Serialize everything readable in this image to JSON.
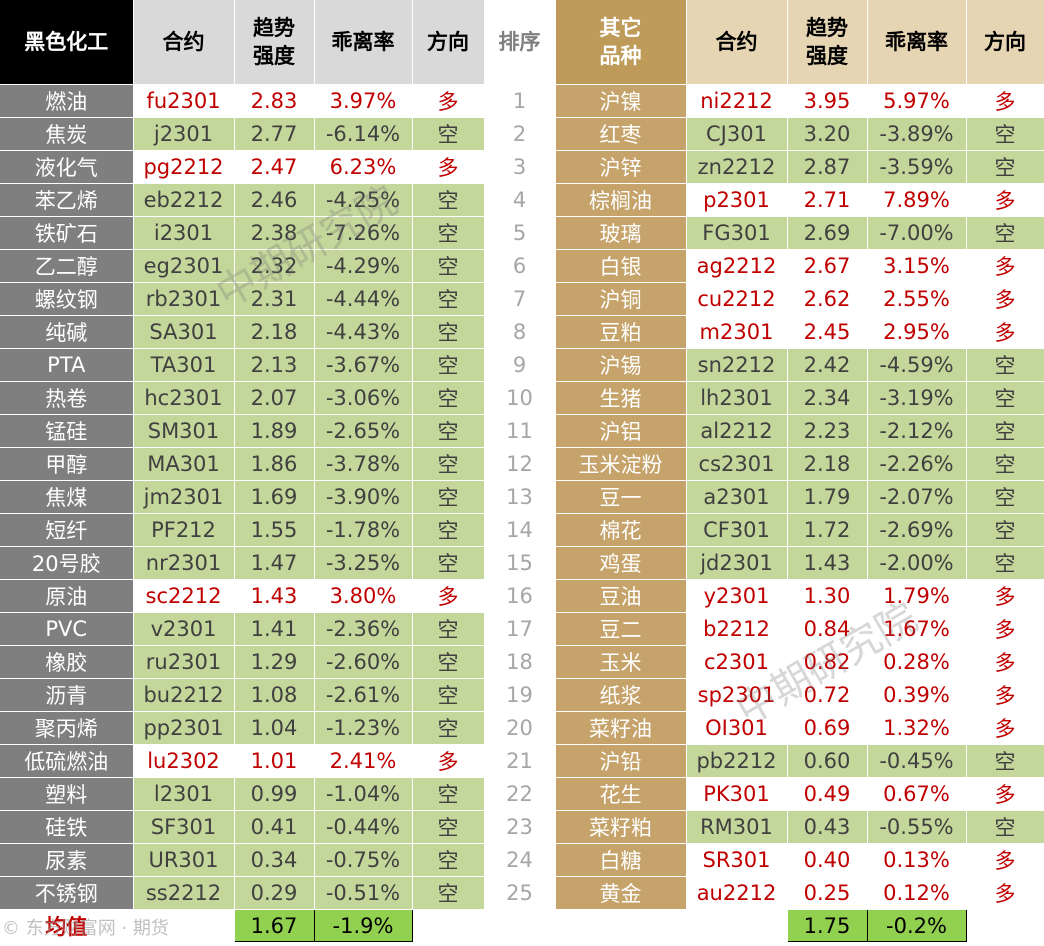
{
  "headers": {
    "left_category": "黑色化工",
    "contract": "合约",
    "trend_line1": "趋势",
    "trend_line2": "强度",
    "deviation": "乖离率",
    "direction": "方向",
    "rank": "排序",
    "right_category_line1": "其它",
    "right_category_line2": "品种"
  },
  "left_rows": [
    {
      "name": "燃油",
      "contract": "fu2301",
      "strength": "2.83",
      "deviation": "3.97%",
      "direction": "多"
    },
    {
      "name": "焦炭",
      "contract": "j2301",
      "strength": "2.77",
      "deviation": "-6.14%",
      "direction": "空"
    },
    {
      "name": "液化气",
      "contract": "pg2212",
      "strength": "2.47",
      "deviation": "6.23%",
      "direction": "多"
    },
    {
      "name": "苯乙烯",
      "contract": "eb2212",
      "strength": "2.46",
      "deviation": "-4.25%",
      "direction": "空"
    },
    {
      "name": "铁矿石",
      "contract": "i2301",
      "strength": "2.38",
      "deviation": "-7.26%",
      "direction": "空"
    },
    {
      "name": "乙二醇",
      "contract": "eg2301",
      "strength": "2.32",
      "deviation": "-4.29%",
      "direction": "空"
    },
    {
      "name": "螺纹钢",
      "contract": "rb2301",
      "strength": "2.31",
      "deviation": "-4.44%",
      "direction": "空"
    },
    {
      "name": "纯碱",
      "contract": "SA301",
      "strength": "2.18",
      "deviation": "-4.43%",
      "direction": "空"
    },
    {
      "name": "PTA",
      "contract": "TA301",
      "strength": "2.13",
      "deviation": "-3.67%",
      "direction": "空"
    },
    {
      "name": "热卷",
      "contract": "hc2301",
      "strength": "2.07",
      "deviation": "-3.06%",
      "direction": "空"
    },
    {
      "name": "锰硅",
      "contract": "SM301",
      "strength": "1.89",
      "deviation": "-2.65%",
      "direction": "空"
    },
    {
      "name": "甲醇",
      "contract": "MA301",
      "strength": "1.86",
      "deviation": "-3.78%",
      "direction": "空"
    },
    {
      "name": "焦煤",
      "contract": "jm2301",
      "strength": "1.69",
      "deviation": "-3.90%",
      "direction": "空"
    },
    {
      "name": "短纤",
      "contract": "PF212",
      "strength": "1.55",
      "deviation": "-1.78%",
      "direction": "空"
    },
    {
      "name": "20号胶",
      "contract": "nr2301",
      "strength": "1.47",
      "deviation": "-3.25%",
      "direction": "空"
    },
    {
      "name": "原油",
      "contract": "sc2212",
      "strength": "1.43",
      "deviation": "3.80%",
      "direction": "多"
    },
    {
      "name": "PVC",
      "contract": "v2301",
      "strength": "1.41",
      "deviation": "-2.36%",
      "direction": "空"
    },
    {
      "name": "橡胶",
      "contract": "ru2301",
      "strength": "1.29",
      "deviation": "-2.60%",
      "direction": "空"
    },
    {
      "name": "沥青",
      "contract": "bu2212",
      "strength": "1.08",
      "deviation": "-2.61%",
      "direction": "空"
    },
    {
      "name": "聚丙烯",
      "contract": "pp2301",
      "strength": "1.04",
      "deviation": "-1.23%",
      "direction": "空"
    },
    {
      "name": "低硫燃油",
      "contract": "lu2302",
      "strength": "1.01",
      "deviation": "2.41%",
      "direction": "多"
    },
    {
      "name": "塑料",
      "contract": "l2301",
      "strength": "0.99",
      "deviation": "-1.04%",
      "direction": "空"
    },
    {
      "name": "硅铁",
      "contract": "SF301",
      "strength": "0.41",
      "deviation": "-0.44%",
      "direction": "空"
    },
    {
      "name": "尿素",
      "contract": "UR301",
      "strength": "0.34",
      "deviation": "-0.75%",
      "direction": "空"
    },
    {
      "name": "不锈钢",
      "contract": "ss2212",
      "strength": "0.29",
      "deviation": "-0.51%",
      "direction": "空"
    }
  ],
  "right_rows": [
    {
      "name": "沪镍",
      "contract": "ni2212",
      "strength": "3.95",
      "deviation": "5.97%",
      "direction": "多"
    },
    {
      "name": "红枣",
      "contract": "CJ301",
      "strength": "3.20",
      "deviation": "-3.89%",
      "direction": "空"
    },
    {
      "name": "沪锌",
      "contract": "zn2212",
      "strength": "2.87",
      "deviation": "-3.59%",
      "direction": "空"
    },
    {
      "name": "棕榈油",
      "contract": "p2301",
      "strength": "2.71",
      "deviation": "7.89%",
      "direction": "多"
    },
    {
      "name": "玻璃",
      "contract": "FG301",
      "strength": "2.69",
      "deviation": "-7.00%",
      "direction": "空"
    },
    {
      "name": "白银",
      "contract": "ag2212",
      "strength": "2.67",
      "deviation": "3.15%",
      "direction": "多"
    },
    {
      "name": "沪铜",
      "contract": "cu2212",
      "strength": "2.62",
      "deviation": "2.55%",
      "direction": "多"
    },
    {
      "name": "豆粕",
      "contract": "m2301",
      "strength": "2.45",
      "deviation": "2.95%",
      "direction": "多"
    },
    {
      "name": "沪锡",
      "contract": "sn2212",
      "strength": "2.42",
      "deviation": "-4.59%",
      "direction": "空"
    },
    {
      "name": "生猪",
      "contract": "lh2301",
      "strength": "2.34",
      "deviation": "-3.19%",
      "direction": "空"
    },
    {
      "name": "沪铝",
      "contract": "al2212",
      "strength": "2.23",
      "deviation": "-2.12%",
      "direction": "空"
    },
    {
      "name": "玉米淀粉",
      "contract": "cs2301",
      "strength": "2.18",
      "deviation": "-2.26%",
      "direction": "空"
    },
    {
      "name": "豆一",
      "contract": "a2301",
      "strength": "1.79",
      "deviation": "-2.07%",
      "direction": "空"
    },
    {
      "name": "棉花",
      "contract": "CF301",
      "strength": "1.72",
      "deviation": "-2.69%",
      "direction": "空"
    },
    {
      "name": "鸡蛋",
      "contract": "jd2301",
      "strength": "1.43",
      "deviation": "-2.00%",
      "direction": "空"
    },
    {
      "name": "豆油",
      "contract": "y2301",
      "strength": "1.30",
      "deviation": "1.79%",
      "direction": "多"
    },
    {
      "name": "豆二",
      "contract": "b2212",
      "strength": "0.84",
      "deviation": "1.67%",
      "direction": "多"
    },
    {
      "name": "玉米",
      "contract": "c2301",
      "strength": "0.82",
      "deviation": "0.28%",
      "direction": "多"
    },
    {
      "name": "纸浆",
      "contract": "sp2301",
      "strength": "0.72",
      "deviation": "0.39%",
      "direction": "多"
    },
    {
      "name": "菜籽油",
      "contract": "OI301",
      "strength": "0.69",
      "deviation": "1.32%",
      "direction": "多"
    },
    {
      "name": "沪铅",
      "contract": "pb2212",
      "strength": "0.60",
      "deviation": "-0.45%",
      "direction": "空"
    },
    {
      "name": "花生",
      "contract": "PK301",
      "strength": "0.49",
      "deviation": "0.67%",
      "direction": "多"
    },
    {
      "name": "菜籽粕",
      "contract": "RM301",
      "strength": "0.43",
      "deviation": "-0.55%",
      "direction": "空"
    },
    {
      "name": "白糖",
      "contract": "SR301",
      "strength": "0.40",
      "deviation": "0.13%",
      "direction": "多"
    },
    {
      "name": "黄金",
      "contract": "au2212",
      "strength": "0.25",
      "deviation": "0.12%",
      "direction": "多"
    }
  ],
  "average": {
    "label": "均值",
    "left_strength": "1.67",
    "left_deviation": "-1.9%",
    "right_strength": "1.75",
    "right_deviation": "-0.2%"
  },
  "watermarks": {
    "main": "中期研究院",
    "corner": "©  东方财富网 · 期货"
  },
  "colors": {
    "long_text": "#c00000",
    "short_fill": "#c4d79b",
    "average_fill": "#92d050",
    "left_header": "#000000",
    "right_header": "#bf9b5a",
    "rank_column": "#ffffff"
  }
}
